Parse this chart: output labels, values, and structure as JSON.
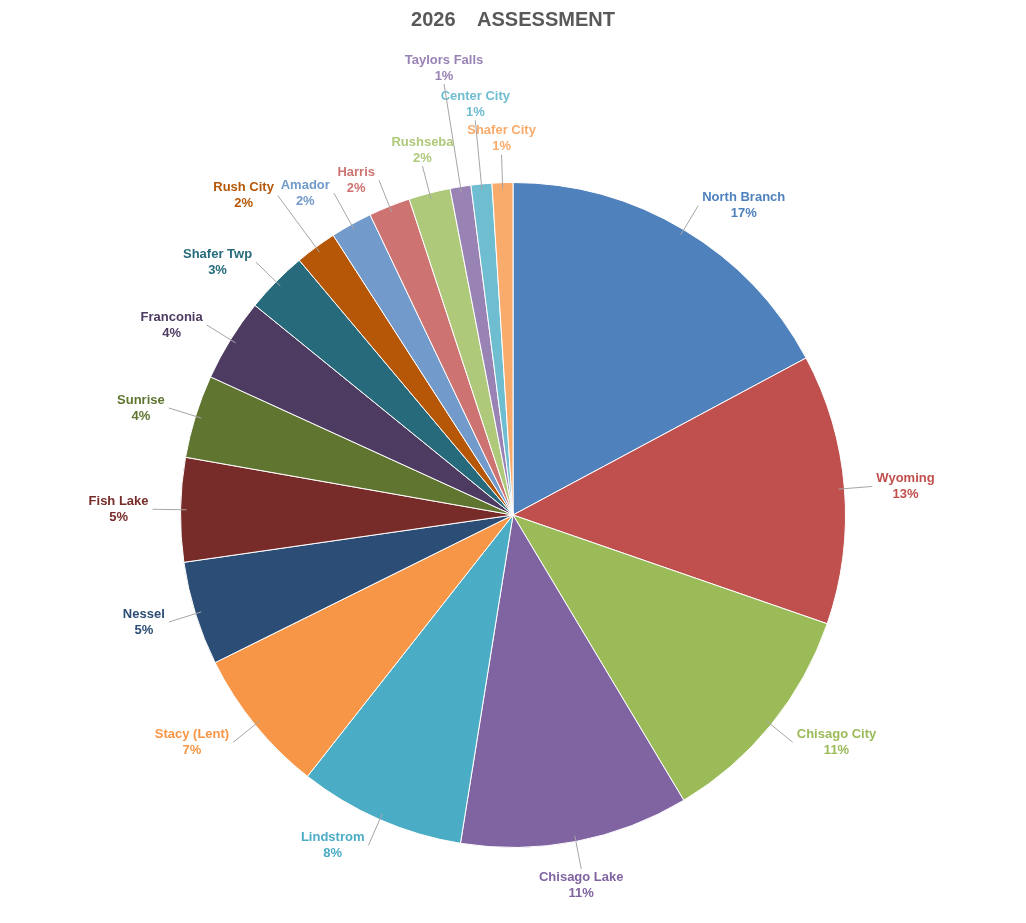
{
  "chart_data": {
    "type": "pie",
    "title": "2026    ASSESSMENT",
    "categories": [
      "North Branch",
      "Wyoming",
      "Chisago City",
      "Chisago Lake",
      "Lindstrom",
      "Stacy (Lent)",
      "Nessel",
      "Fish Lake",
      "Sunrise",
      "Franconia",
      "Shafer Twp",
      "Rush City",
      "Amador",
      "Harris",
      "Rushseba",
      "Taylors Falls",
      "Center City",
      "Shafer City"
    ],
    "values": [
      17,
      13,
      11,
      11,
      8,
      7,
      5,
      5,
      4,
      4,
      3,
      2,
      2,
      2,
      2,
      1,
      1,
      1
    ],
    "value_labels": [
      "17%",
      "13%",
      "11%",
      "11%",
      "8%",
      "7%",
      "5%",
      "5%",
      "4%",
      "4%",
      "3%",
      "2%",
      "2%",
      "2%",
      "2%",
      "1%",
      "1%",
      "1%"
    ],
    "colors": [
      "#4f81bd",
      "#c0504d",
      "#9bbb59",
      "#8064a2",
      "#4bacc6",
      "#f79646",
      "#2c4d75",
      "#772c2a",
      "#5f7530",
      "#4d3b62",
      "#276a7c",
      "#b65708",
      "#729aca",
      "#cd7371",
      "#afc97a",
      "#9983b5",
      "#6fbdd1",
      "#f9ab6b"
    ],
    "legend": false
  }
}
